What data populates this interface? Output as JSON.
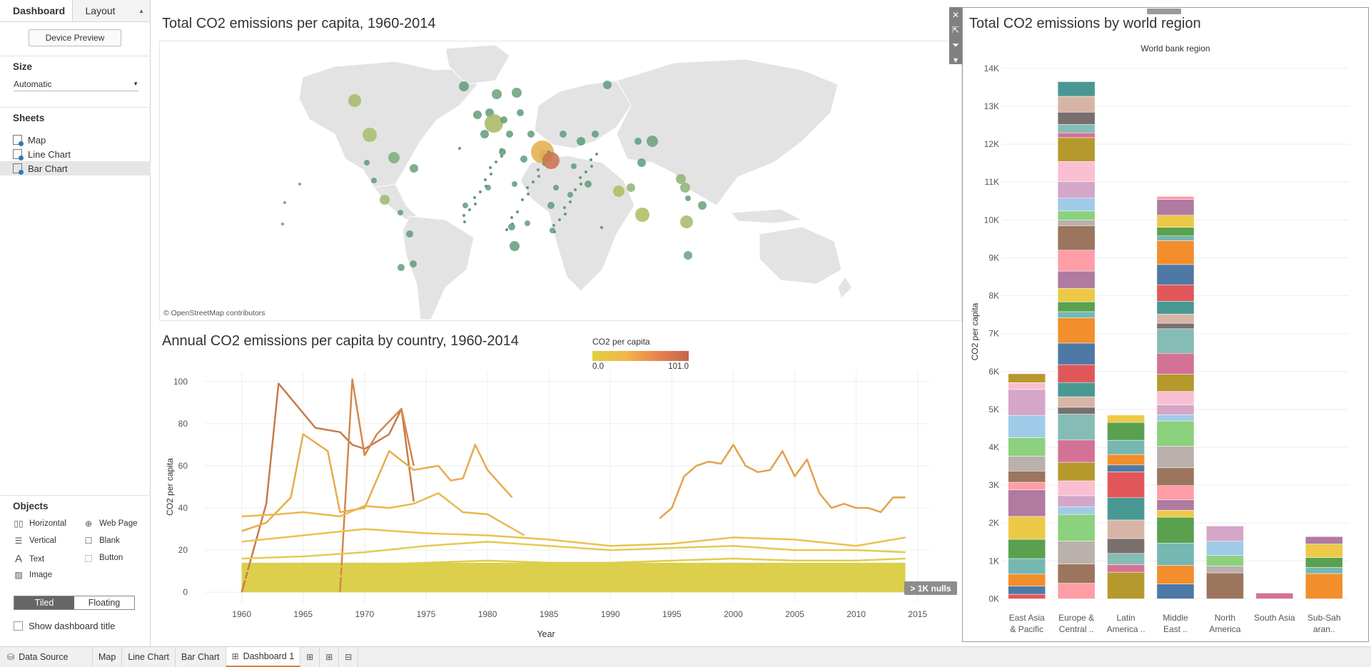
{
  "left_panel": {
    "tab_dashboard": "Dashboard",
    "tab_layout": "Layout",
    "device_preview": "Device Preview",
    "size_title": "Size",
    "size_value": "Automatic",
    "sheets_title": "Sheets",
    "sheets": [
      {
        "label": "Map"
      },
      {
        "label": "Line Chart"
      },
      {
        "label": "Bar Chart"
      }
    ],
    "objects_title": "Objects",
    "objects": [
      {
        "label": "Horizontal",
        "icon": "horizontal-icon"
      },
      {
        "label": "Web Page",
        "icon": "web-page-icon"
      },
      {
        "label": "Vertical",
        "icon": "vertical-icon"
      },
      {
        "label": "Blank",
        "icon": "blank-icon"
      },
      {
        "label": "Text",
        "icon": "text-icon"
      },
      {
        "label": "Button",
        "icon": "button-icon"
      },
      {
        "label": "Image",
        "icon": "image-icon"
      }
    ],
    "tiled": "Tiled",
    "floating": "Floating",
    "show_title": "Show dashboard title"
  },
  "map": {
    "title": "Total CO2 emissions per capita, 1960-2014",
    "attribution": "© OpenStreetMap contributors"
  },
  "line": {
    "title": "Annual CO2 emissions per capita by country, 1960-2014",
    "legend_title": "CO2 per capita",
    "legend_min": "0.0",
    "legend_max": "101.0",
    "nulls_badge": "> 1K nulls"
  },
  "bar": {
    "title": "Total CO2 emissions by world region"
  },
  "tabs": {
    "data_source": "Data Source",
    "items": [
      "Map",
      "Line Chart",
      "Bar Chart"
    ],
    "dashboard": "Dashboard 1"
  },
  "chart_data": [
    {
      "type": "line",
      "title": "Annual CO2 emissions per capita by country, 1960-2014",
      "xlabel": "Year",
      "ylabel": "CO2 per capita",
      "xlim": [
        1957,
        2016
      ],
      "ylim": [
        -5,
        105
      ],
      "xticks": [
        1960,
        1965,
        1970,
        1975,
        1980,
        1985,
        1990,
        1995,
        2000,
        2005,
        2010,
        2015
      ],
      "yticks": [
        0,
        20,
        40,
        60,
        80,
        100
      ],
      "series": [
        {
          "color": "#c97a4a",
          "x": [
            1960,
            1962,
            1963,
            1966,
            1968,
            1969,
            1970,
            1972,
            1973,
            1974
          ],
          "values": [
            0,
            42,
            99,
            78,
            76,
            70,
            68,
            75,
            87,
            43
          ]
        },
        {
          "color": "#d4874a",
          "x": [
            1968,
            1969,
            1970,
            1971,
            1973,
            1974
          ],
          "values": [
            0,
            101,
            65,
            75,
            87,
            60
          ]
        },
        {
          "color": "#e3a24c",
          "x": [
            1994,
            1995,
            1996,
            1997,
            1998,
            1999,
            2000,
            2001,
            2002,
            2003,
            2004,
            2005,
            2006,
            2007,
            2008,
            2009,
            2010,
            2011,
            2012,
            2013,
            2014
          ],
          "values": [
            35,
            40,
            55,
            60,
            62,
            61,
            70,
            60,
            57,
            58,
            67,
            55,
            63,
            47,
            40,
            42,
            40,
            40,
            38,
            45,
            45
          ]
        },
        {
          "color": "#e6ac4d",
          "x": [
            1960,
            1962,
            1964,
            1965,
            1967,
            1968,
            1970,
            1972,
            1974,
            1976,
            1977,
            1978,
            1979,
            1980,
            1982
          ],
          "values": [
            29,
            33,
            45,
            75,
            67,
            38,
            40,
            67,
            58,
            60,
            53,
            54,
            70,
            58,
            45
          ]
        },
        {
          "color": "#e9b84e",
          "x": [
            1960,
            1963,
            1965,
            1968,
            1970,
            1972,
            1974,
            1976,
            1978,
            1980,
            1983
          ],
          "values": [
            36,
            37,
            38,
            36,
            41,
            40,
            42,
            47,
            38,
            37,
            27
          ]
        },
        {
          "color": "#ebc150",
          "x": [
            1960,
            1965,
            1970,
            1975,
            1980,
            1985,
            1990,
            1995,
            2000,
            2005,
            2010,
            2014
          ],
          "values": [
            24,
            27,
            30,
            28,
            27,
            25,
            22,
            23,
            26,
            25,
            22,
            26
          ]
        },
        {
          "color": "#e5c953",
          "x": [
            1960,
            1965,
            1970,
            1975,
            1980,
            1985,
            1990,
            1995,
            2000,
            2005,
            2010,
            2014
          ],
          "values": [
            16,
            17,
            19,
            22,
            24,
            22,
            20,
            21,
            22,
            20,
            20,
            19
          ]
        },
        {
          "color": "#dece50",
          "x": [
            1960,
            1965,
            1970,
            1975,
            1980,
            1985,
            1990,
            1995,
            2000,
            2005,
            2010,
            2014
          ],
          "values": [
            10,
            11,
            13,
            14,
            15,
            14,
            14,
            15,
            16,
            15,
            15,
            16
          ]
        },
        {
          "color": "#dbcf4c",
          "x": [
            1960,
            1970,
            1980,
            1990,
            2000,
            2014
          ],
          "values": [
            6,
            8,
            10,
            11,
            12,
            12
          ]
        }
      ]
    },
    {
      "type": "bar",
      "title": "Total CO2 emissions by world region",
      "xlabel": "World bank region",
      "ylabel": "CO2 per capita",
      "ylim": [
        -200,
        14300
      ],
      "yticks": [
        0,
        1000,
        2000,
        3000,
        4000,
        5000,
        6000,
        7000,
        8000,
        9000,
        10000,
        11000,
        12000,
        13000,
        14000
      ],
      "ytick_labels": [
        "0K",
        "1K",
        "2K",
        "3K",
        "4K",
        "5K",
        "6K",
        "7K",
        "8K",
        "9K",
        "10K",
        "11K",
        "12K",
        "13K",
        "14K"
      ],
      "categories": [
        "East Asia & Pacific",
        "Europe & Central ..",
        "Latin America ..",
        "Middle East ..",
        "North America",
        "South Asia",
        "Sub-Sah aran.."
      ],
      "values": [
        5940,
        13650,
        4850,
        10620,
        1920,
        150,
        1640
      ]
    }
  ]
}
